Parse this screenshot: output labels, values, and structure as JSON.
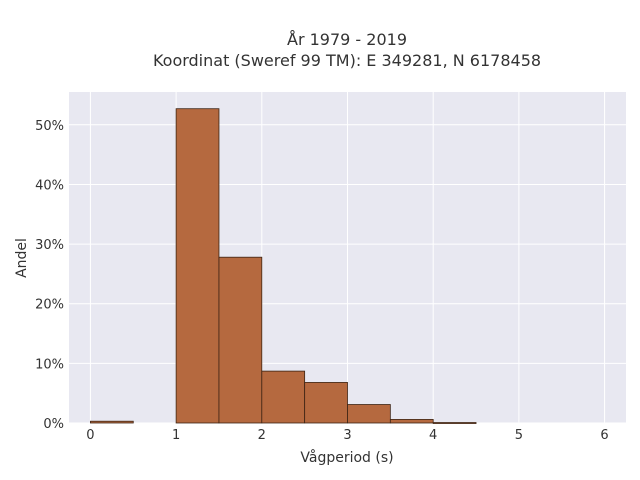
{
  "chart_data": {
    "type": "bar",
    "title_line1": "År 1979 - 2019",
    "title_line2": "Koordinat (Sweref 99 TM): E 349281, N 6178458",
    "xlabel": "Vågperiod (s)",
    "ylabel": "Andel",
    "xlim": [
      -0.25,
      6.25
    ],
    "ylim": [
      0,
      0.555
    ],
    "x_ticks": [
      0,
      1,
      2,
      3,
      4,
      5,
      6
    ],
    "x_tick_labels": [
      "0",
      "1",
      "2",
      "3",
      "4",
      "5",
      "6"
    ],
    "y_ticks": [
      0,
      0.1,
      0.2,
      0.3,
      0.4,
      0.5
    ],
    "y_tick_labels": [
      "0%",
      "10%",
      "20%",
      "30%",
      "40%",
      "50%"
    ],
    "grid": true,
    "bar_color": "#b5693f",
    "bar_edge_color": "#3d2414",
    "plot_bg": "#e8e8f1",
    "bins": [
      {
        "x0": 0.0,
        "x1": 0.5,
        "value": 0.003
      },
      {
        "x0": 0.5,
        "x1": 1.0,
        "value": 0.0
      },
      {
        "x0": 1.0,
        "x1": 1.5,
        "value": 0.527
      },
      {
        "x0": 1.5,
        "x1": 2.0,
        "value": 0.278
      },
      {
        "x0": 2.0,
        "x1": 2.5,
        "value": 0.087
      },
      {
        "x0": 2.5,
        "x1": 3.0,
        "value": 0.068
      },
      {
        "x0": 3.0,
        "x1": 3.5,
        "value": 0.031
      },
      {
        "x0": 3.5,
        "x1": 4.0,
        "value": 0.006
      },
      {
        "x0": 4.0,
        "x1": 4.5,
        "value": 0.0008
      }
    ]
  }
}
